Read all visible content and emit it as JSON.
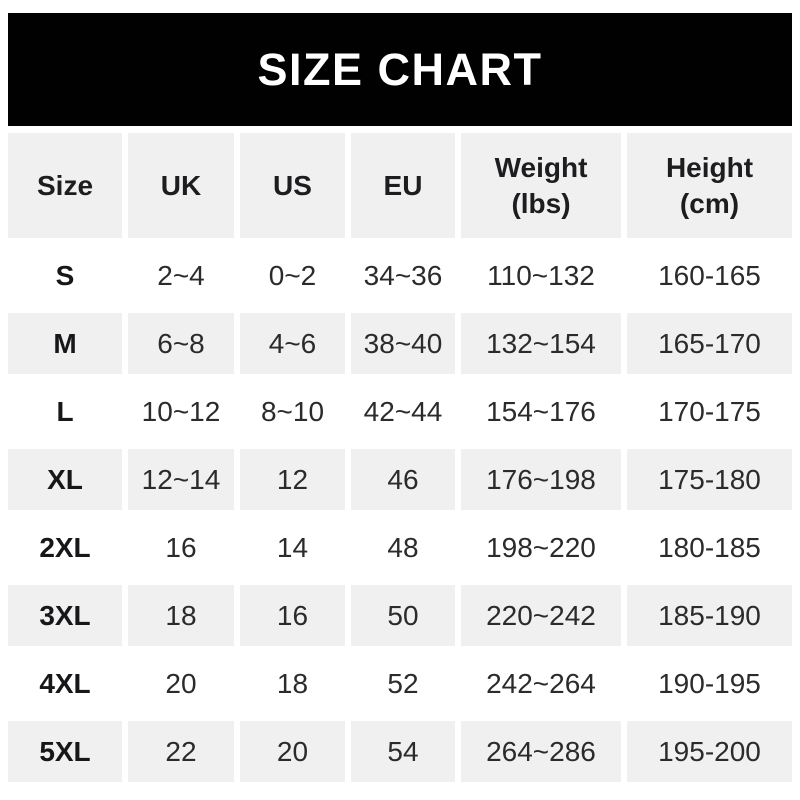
{
  "banner": {
    "title": "SIZE CHART"
  },
  "colors": {
    "banner_bg": "#010101",
    "banner_text": "#ffffff",
    "stripe_bg": "#f0f0f0",
    "header_text": "#1d1d1f",
    "body_text": "#2b2b2b",
    "page_bg": "#ffffff"
  },
  "chart_data": {
    "type": "table",
    "title": "SIZE CHART",
    "legend_position": "none",
    "grid": false,
    "columns": [
      "Size",
      "UK",
      "US",
      "EU",
      "Weight\n(lbs)",
      "Height\n(cm)"
    ],
    "rows": [
      [
        "S",
        "2~4",
        "0~2",
        "34~36",
        "110~132",
        "160-165"
      ],
      [
        "M",
        "6~8",
        "4~6",
        "38~40",
        "132~154",
        "165-170"
      ],
      [
        "L",
        "10~12",
        "8~10",
        "42~44",
        "154~176",
        "170-175"
      ],
      [
        "XL",
        "12~14",
        "12",
        "46",
        "176~198",
        "175-180"
      ],
      [
        "2XL",
        "16",
        "14",
        "48",
        "198~220",
        "180-185"
      ],
      [
        "3XL",
        "18",
        "16",
        "50",
        "220~242",
        "185-190"
      ],
      [
        "4XL",
        "20",
        "18",
        "52",
        "242~264",
        "190-195"
      ],
      [
        "5XL",
        "22",
        "20",
        "54",
        "264~286",
        "195-200"
      ]
    ]
  }
}
